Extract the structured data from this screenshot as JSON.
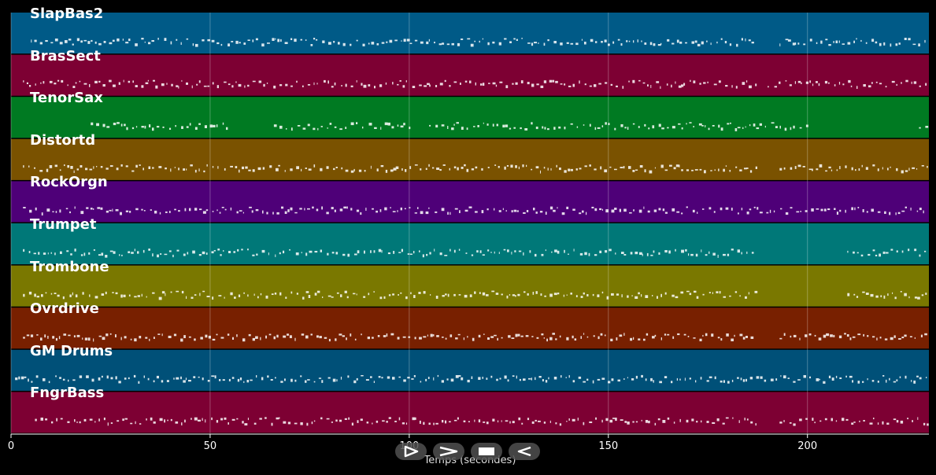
{
  "axis": {
    "xlabel": "Temps (secondes)",
    "xlim": [
      0,
      230.5
    ],
    "ticks": [
      {
        "value": 0,
        "label": "0"
      },
      {
        "value": 50,
        "label": "50"
      },
      {
        "value": 100,
        "label": "100"
      },
      {
        "value": 150,
        "label": "150"
      },
      {
        "value": 200,
        "label": "200"
      }
    ]
  },
  "tracks": [
    {
      "name": "SlapBas2",
      "color": "#005a87",
      "segments": [
        [
          5,
          187
        ],
        [
          193,
          230
        ]
      ]
    },
    {
      "name": "BrasSect",
      "color": "#7d0033",
      "segments": [
        [
          3,
          187
        ],
        [
          190,
          230
        ]
      ]
    },
    {
      "name": "TenorSax",
      "color": "#007a22",
      "segments": [
        [
          20,
          55
        ],
        [
          66,
          100
        ],
        [
          105,
          200
        ],
        [
          228,
          230
        ]
      ]
    },
    {
      "name": "Distortd",
      "color": "#7a5200",
      "segments": [
        [
          3,
          187
        ],
        [
          193,
          230
        ]
      ]
    },
    {
      "name": "RockOrgn",
      "color": "#4e0078",
      "segments": [
        [
          3,
          230
        ]
      ]
    },
    {
      "name": "Trumpet",
      "color": "#007878",
      "segments": [
        [
          3,
          187
        ],
        [
          210,
          230
        ]
      ]
    },
    {
      "name": "Trombone",
      "color": "#7a7800",
      "segments": [
        [
          3,
          187
        ],
        [
          210,
          230
        ]
      ]
    },
    {
      "name": "Ovrdrive",
      "color": "#782000",
      "segments": [
        [
          3,
          187
        ],
        [
          193,
          230
        ]
      ]
    },
    {
      "name": "GM Drums",
      "color": "#005078",
      "segments": [
        [
          1,
          230
        ]
      ]
    },
    {
      "name": "FngrBass",
      "color": "#7d0033",
      "segments": [
        [
          6,
          187
        ],
        [
          193,
          230
        ]
      ]
    }
  ],
  "controls": [
    {
      "name": "play-button",
      "icon": "play-outline-icon"
    },
    {
      "name": "fast-forward-button",
      "icon": "fast-forward-icon"
    },
    {
      "name": "stop-button",
      "icon": "stop-icon"
    },
    {
      "name": "rewind-button",
      "icon": "rewind-icon"
    }
  ]
}
